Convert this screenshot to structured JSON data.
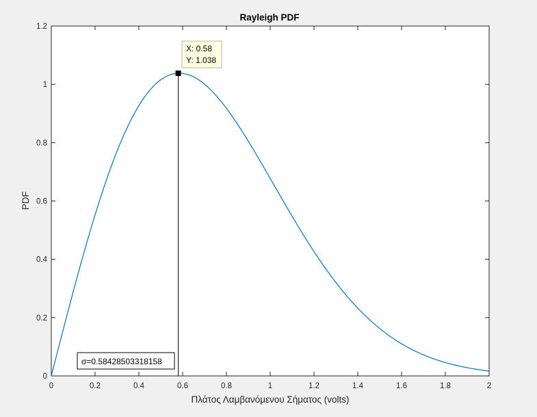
{
  "chart_data": {
    "type": "line",
    "title": "Rayleigh PDF",
    "xlabel": "Πλάτος Λαμβανόμενου Σήματος (volts)",
    "ylabel": "PDF",
    "xlim": [
      0,
      2
    ],
    "ylim": [
      0,
      1.2
    ],
    "x_ticks": [
      "0",
      "0.2",
      "0.4",
      "0.6",
      "0.8",
      "1",
      "1.2",
      "1.4",
      "1.6",
      "1.8",
      "2"
    ],
    "y_ticks": [
      "0",
      "0.2",
      "0.4",
      "0.6",
      "0.8",
      "1",
      "1.2"
    ],
    "grid": false,
    "series": [
      {
        "color": "#0072bd",
        "sigma": 0.58428503318158,
        "x": [
          0,
          0.1,
          0.2,
          0.3,
          0.4,
          0.5,
          0.584,
          0.7,
          0.8,
          0.9,
          1.0,
          1.1,
          1.2,
          1.3,
          1.4,
          1.5,
          1.6,
          1.7,
          1.8,
          1.9,
          2.0
        ],
        "y": [
          0,
          0.289,
          0.556,
          0.778,
          0.939,
          1.028,
          1.038,
          0.999,
          0.915,
          0.803,
          0.676,
          0.548,
          0.428,
          0.324,
          0.236,
          0.166,
          0.114,
          0.075,
          0.048,
          0.03,
          0.018
        ]
      }
    ],
    "datatip": {
      "x": 0.58,
      "y": 1.038,
      "x_text": "X: 0.58",
      "y_text": "Y: 1.038"
    },
    "annotation": {
      "text": "σ=0.58428503318158"
    }
  }
}
